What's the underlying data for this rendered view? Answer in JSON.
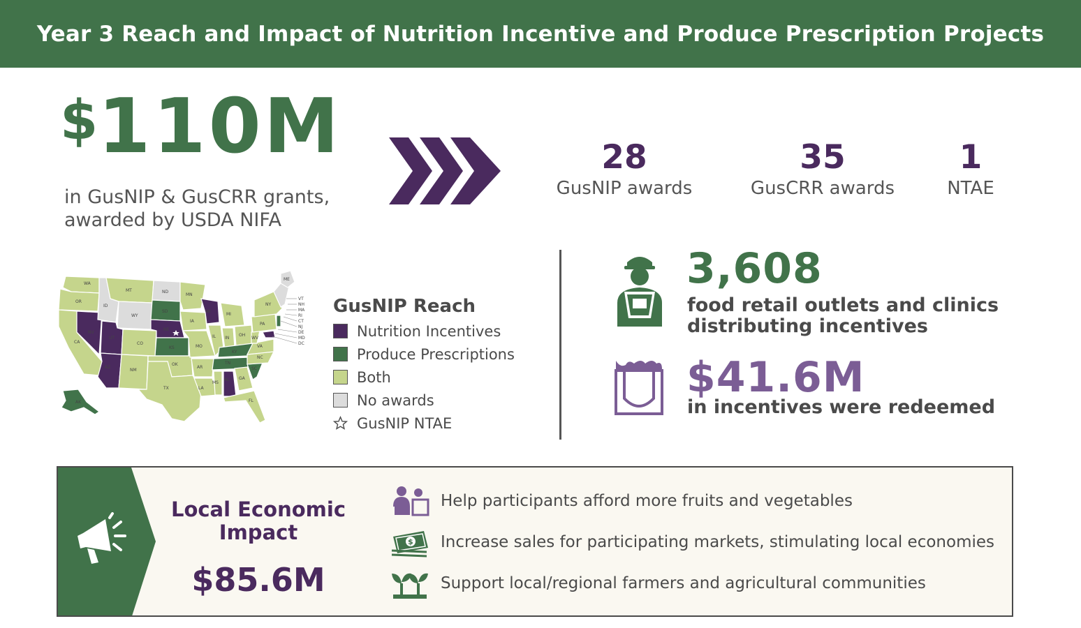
{
  "header": {
    "title": "Year 3 Reach and Impact of Nutrition Incentive and Produce Prescription Projects"
  },
  "grants": {
    "currency_symbol": "$",
    "amount": "110M",
    "description": "in GusNIP & GusCRR grants, awarded by USDA NIFA"
  },
  "awards": [
    {
      "value": "28",
      "label": "GusNIP awards"
    },
    {
      "value": "35",
      "label": "GusCRR awards"
    },
    {
      "value": "1",
      "label": "NTAE"
    }
  ],
  "legend": {
    "title": "GusNIP Reach",
    "items": [
      {
        "label": "Nutrition Incentives",
        "color": "#4a2a5e"
      },
      {
        "label": "Produce Prescriptions",
        "color": "#41734a"
      },
      {
        "label": "Both",
        "color": "#c5d58c"
      },
      {
        "label": "No awards",
        "color": "#dcdcdc"
      }
    ],
    "ntae_label": "GusNIP NTAE"
  },
  "map_labels": {
    "WA": "WA",
    "OR": "OR",
    "ID": "ID",
    "MT": "MT",
    "WY": "WY",
    "ND": "ND",
    "SD": "SD",
    "NE": "NE",
    "KS": "KS",
    "CA": "CA",
    "NV": "NV",
    "UT": "UT",
    "CO": "CO",
    "AZ": "AZ",
    "NM": "NM",
    "TX": "TX",
    "OK": "OK",
    "MN": "MN",
    "IA": "IA",
    "MO": "MO",
    "AR": "AR",
    "LA": "LA",
    "WI": "WI",
    "IL": "IL",
    "MI": "MI",
    "IN": "IN",
    "OH": "OH",
    "KY": "KY",
    "TN": "TN",
    "MS": "MS",
    "AL": "AL",
    "GA": "GA",
    "FL": "FL",
    "SC": "SC",
    "NC": "NC",
    "VA": "VA",
    "WV": "WV",
    "PA": "PA",
    "NY": "NY",
    "ME": "ME",
    "AK": "AK",
    "VT": "VT",
    "NH": "NH",
    "MA": "MA",
    "RI": "RI",
    "CT": "CT",
    "NJ": "NJ",
    "DE": "DE",
    "MD": "MD",
    "DC": "DC"
  },
  "outlets": {
    "value": "3,608",
    "label": "food retail outlets and clinics distributing incentives"
  },
  "redeemed": {
    "value": "$41.6M",
    "label": "in incentives were redeemed"
  },
  "impact": {
    "title": "Local Economic Impact",
    "value": "$85.6M",
    "benefits": [
      {
        "text": "Help participants afford more fruits and vegetables",
        "icon": "shopping-people-icon"
      },
      {
        "text": "Increase sales for participating markets, stimulating local economies",
        "icon": "money-stack-icon"
      },
      {
        "text": "Support local/regional farmers and agricultural communities",
        "icon": "seedling-icon"
      }
    ]
  },
  "colors": {
    "green": "#41734a",
    "purple": "#4a2a5e",
    "light_purple": "#7b5d95",
    "lime": "#c5d58c",
    "gray": "#dcdcdc"
  }
}
